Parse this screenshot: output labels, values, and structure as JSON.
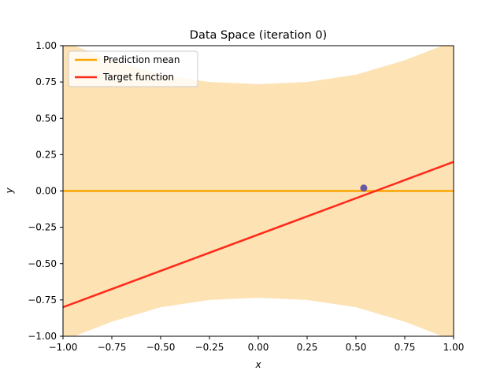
{
  "chart_data": {
    "type": "line",
    "title": "Data Space (iteration 0)",
    "xlabel": "x",
    "ylabel": "y",
    "xlim": [
      -1.0,
      1.0
    ],
    "ylim": [
      -1.0,
      1.0
    ],
    "x_ticks": [
      "−1.00",
      "−0.75",
      "−0.50",
      "−0.25",
      "0.00",
      "0.25",
      "0.50",
      "0.75",
      "1.00"
    ],
    "y_ticks": [
      "−1.00",
      "−0.75",
      "−0.50",
      "−0.25",
      "0.00",
      "0.25",
      "0.50",
      "0.75",
      "1.00"
    ],
    "x_tick_values": [
      -1.0,
      -0.75,
      -0.5,
      -0.25,
      0.0,
      0.25,
      0.5,
      0.75,
      1.0
    ],
    "y_tick_values": [
      -1.0,
      -0.75,
      -0.5,
      -0.25,
      0.0,
      0.25,
      0.5,
      0.75,
      1.0
    ],
    "grid": false,
    "legend_position": "top-left",
    "series": [
      {
        "name": "Prediction mean",
        "color": "#ffa500",
        "x": [
          -1.0,
          1.0
        ],
        "y": [
          0.0,
          0.0
        ]
      },
      {
        "name": "Target function",
        "color": "#ff2a1a",
        "x": [
          -1.0,
          1.0
        ],
        "y": [
          -0.8,
          0.2
        ]
      }
    ],
    "uncertainty_band": {
      "color": "#fde2b3",
      "x": [
        -1.0,
        -0.75,
        -0.5,
        -0.25,
        0.0,
        0.25,
        0.5,
        0.75,
        1.0
      ],
      "upper": [
        1.03,
        0.9,
        0.8,
        0.75,
        0.735,
        0.75,
        0.8,
        0.9,
        1.03
      ],
      "lower": [
        -1.03,
        -0.9,
        -0.8,
        -0.75,
        -0.735,
        -0.75,
        -0.8,
        -0.9,
        -1.03
      ]
    },
    "observations": [
      {
        "x": 0.54,
        "y": 0.02,
        "color": "#6a5a9e"
      }
    ]
  }
}
